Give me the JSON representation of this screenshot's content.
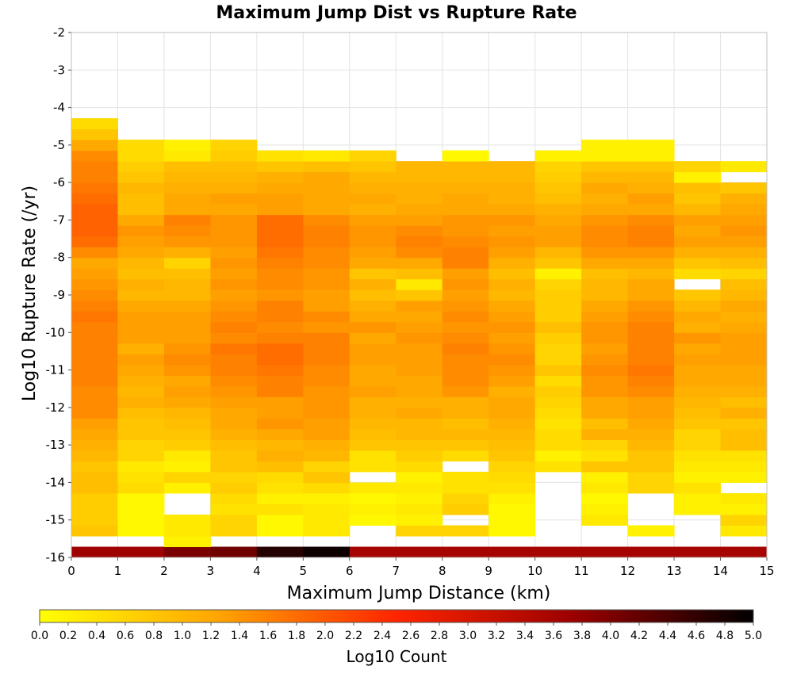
{
  "chart_data": {
    "type": "heatmap",
    "title": "Maximum Jump Dist vs Rupture Rate",
    "xlabel": "Maximum Jump Distance (km)",
    "ylabel": "Log10 Rupture Rate (/yr)",
    "xlim": [
      0,
      15
    ],
    "ylim": [
      -16,
      -2
    ],
    "x_ticks": [
      "0",
      "1",
      "2",
      "3",
      "4",
      "5",
      "6",
      "7",
      "8",
      "9",
      "10",
      "11",
      "12",
      "13",
      "14",
      "15"
    ],
    "y_ticks": [
      "-2",
      "-3",
      "-4",
      "-5",
      "-6",
      "-7",
      "-8",
      "-9",
      "-10",
      "-11",
      "-12",
      "-13",
      "-14",
      "-15",
      "-16"
    ],
    "x_bin_width": 1,
    "y_bin_height": 0.2857,
    "y_bins_start": -16,
    "grid": true,
    "colorbar": {
      "label": "Log10 Count",
      "min": 0.0,
      "max": 5.0,
      "ticks": [
        "0.0",
        "0.2",
        "0.4",
        "0.6",
        "0.8",
        "1.0",
        "1.2",
        "1.4",
        "1.6",
        "1.8",
        "2.0",
        "2.2",
        "2.4",
        "2.6",
        "2.8",
        "3.0",
        "3.2",
        "3.4",
        "3.6",
        "3.8",
        "4.0",
        "4.2",
        "4.4",
        "4.6",
        "4.8",
        "5.0"
      ],
      "colors": [
        "#ffff00",
        "#ffa500",
        "#ff2400",
        "#9a0000",
        "#000000"
      ]
    },
    "z_rows_bottom_to_top": [
      [
        3.7,
        3.7,
        4.0,
        4.1,
        4.7,
        4.9,
        3.6,
        3.6,
        3.6,
        3.6,
        3.6,
        3.6,
        3.6,
        3.6,
        3.6
      ],
      [
        null,
        null,
        0.2,
        null,
        null,
        null,
        null,
        null,
        null,
        null,
        null,
        null,
        null,
        null,
        null
      ],
      [
        0.8,
        0.1,
        0.3,
        0.6,
        0.1,
        0.3,
        null,
        0.6,
        0.6,
        0.1,
        null,
        null,
        0.2,
        null,
        0.3
      ],
      [
        0.7,
        0.1,
        0.3,
        0.6,
        0.1,
        0.3,
        0.1,
        0.2,
        null,
        0.1,
        null,
        0.3,
        null,
        null,
        0.6
      ],
      [
        0.7,
        0.1,
        null,
        0.4,
        0.4,
        0.3,
        0.2,
        0.3,
        0.7,
        0.1,
        null,
        0.2,
        null,
        0.2,
        0.2
      ],
      [
        0.7,
        0.1,
        null,
        0.5,
        0.2,
        0.2,
        0.1,
        0.2,
        0.6,
        0.2,
        null,
        0.1,
        null,
        0.2,
        0.3
      ],
      [
        0.9,
        0.5,
        0.2,
        0.7,
        0.4,
        0.5,
        0.3,
        0.3,
        0.4,
        0.4,
        null,
        0.3,
        0.6,
        0.4,
        null
      ],
      [
        0.9,
        0.4,
        0.6,
        0.6,
        0.5,
        0.8,
        null,
        0.2,
        0.4,
        0.5,
        null,
        0.2,
        0.6,
        0.2,
        0.2
      ],
      [
        0.8,
        0.3,
        0.2,
        0.8,
        0.9,
        0.6,
        0.4,
        0.5,
        null,
        0.6,
        0.4,
        0.8,
        0.8,
        0.3,
        0.3
      ],
      [
        1.0,
        0.6,
        0.3,
        0.8,
        1.1,
        1.0,
        0.4,
        0.7,
        0.5,
        0.8,
        0.2,
        0.4,
        0.8,
        0.4,
        0.4
      ],
      [
        1.1,
        0.6,
        0.7,
        0.9,
        1.0,
        1.1,
        0.8,
        0.8,
        0.8,
        0.9,
        0.5,
        0.6,
        1.0,
        0.6,
        0.9
      ],
      [
        1.2,
        0.8,
        0.8,
        1.1,
        1.2,
        1.3,
        0.9,
        1.0,
        1.0,
        1.0,
        0.5,
        1.1,
        1.1,
        0.6,
        0.9
      ],
      [
        1.3,
        0.8,
        0.9,
        1.2,
        1.4,
        1.3,
        1.0,
        1.0,
        0.9,
        1.1,
        0.4,
        0.9,
        1.2,
        0.8,
        0.8
      ],
      [
        1.5,
        0.9,
        1.0,
        1.2,
        1.3,
        1.4,
        1.1,
        1.2,
        1.1,
        1.2,
        0.5,
        1.2,
        1.3,
        0.9,
        1.1
      ],
      [
        1.5,
        1.1,
        1.2,
        1.3,
        1.3,
        1.4,
        1.1,
        1.1,
        1.1,
        1.2,
        0.6,
        1.2,
        1.3,
        1.0,
        0.9
      ],
      [
        1.5,
        1.0,
        1.3,
        1.4,
        1.6,
        1.4,
        1.3,
        1.2,
        1.4,
        1.1,
        0.7,
        1.4,
        1.5,
        1.1,
        1.1
      ],
      [
        1.6,
        1.1,
        1.2,
        1.5,
        1.6,
        1.5,
        1.2,
        1.2,
        1.5,
        1.3,
        0.5,
        1.4,
        1.6,
        1.2,
        1.2
      ],
      [
        1.6,
        1.2,
        1.4,
        1.6,
        1.7,
        1.5,
        1.2,
        1.3,
        1.5,
        1.4,
        0.8,
        1.5,
        1.7,
        1.2,
        1.2
      ],
      [
        1.6,
        1.3,
        1.5,
        1.6,
        1.8,
        1.6,
        1.3,
        1.3,
        1.5,
        1.5,
        0.6,
        1.4,
        1.6,
        1.3,
        1.3
      ],
      [
        1.6,
        1.1,
        1.4,
        1.7,
        1.8,
        1.6,
        1.3,
        1.3,
        1.6,
        1.4,
        0.6,
        1.3,
        1.6,
        1.2,
        1.3
      ],
      [
        1.6,
        1.3,
        1.3,
        1.5,
        1.6,
        1.6,
        1.2,
        1.4,
        1.5,
        1.3,
        0.7,
        1.4,
        1.6,
        1.4,
        1.3
      ],
      [
        1.6,
        1.3,
        1.3,
        1.6,
        1.5,
        1.4,
        1.4,
        1.3,
        1.4,
        1.4,
        0.9,
        1.4,
        1.6,
        1.1,
        1.2
      ],
      [
        1.7,
        1.3,
        1.3,
        1.5,
        1.6,
        1.5,
        1.2,
        1.2,
        1.5,
        1.3,
        0.7,
        1.3,
        1.5,
        1.2,
        1.1
      ],
      [
        1.6,
        1.2,
        1.2,
        1.4,
        1.6,
        1.3,
        1.1,
        1.3,
        1.4,
        1.2,
        0.7,
        1.2,
        1.4,
        1.0,
        1.2
      ],
      [
        1.5,
        1.0,
        1.0,
        1.3,
        1.4,
        1.3,
        0.9,
        0.8,
        1.3,
        1.0,
        0.7,
        1.0,
        1.2,
        0.8,
        1.0
      ],
      [
        1.4,
        1.1,
        1.0,
        1.4,
        1.5,
        1.4,
        1.1,
        0.3,
        1.4,
        1.1,
        0.6,
        1.0,
        1.2,
        null,
        0.9
      ],
      [
        1.3,
        0.9,
        0.9,
        1.3,
        1.5,
        1.4,
        0.8,
        0.9,
        1.3,
        0.9,
        0.2,
        0.9,
        1.0,
        0.5,
        0.6
      ],
      [
        1.2,
        1.0,
        0.6,
        1.4,
        1.6,
        1.5,
        1.2,
        1.2,
        1.6,
        1.1,
        0.8,
        1.2,
        1.2,
        0.8,
        0.9
      ],
      [
        1.5,
        1.2,
        1.1,
        1.3,
        1.7,
        1.5,
        1.3,
        1.5,
        1.6,
        1.3,
        1.0,
        1.4,
        1.4,
        1.1,
        1.1
      ],
      [
        1.8,
        1.3,
        1.4,
        1.4,
        1.8,
        1.6,
        1.4,
        1.6,
        1.5,
        1.4,
        1.3,
        1.5,
        1.6,
        1.3,
        1.3
      ],
      [
        1.9,
        1.4,
        1.5,
        1.4,
        1.8,
        1.6,
        1.4,
        1.5,
        1.4,
        1.3,
        1.3,
        1.5,
        1.6,
        1.2,
        1.4
      ],
      [
        1.9,
        1.2,
        1.6,
        1.4,
        1.8,
        1.5,
        1.3,
        1.3,
        1.4,
        1.4,
        1.2,
        1.4,
        1.5,
        1.3,
        1.3
      ],
      [
        1.9,
        0.9,
        1.2,
        1.2,
        1.3,
        1.2,
        1.1,
        1.2,
        1.2,
        1.2,
        1.1,
        1.2,
        1.2,
        1.0,
        1.2
      ],
      [
        1.8,
        0.9,
        1.2,
        1.3,
        1.3,
        1.2,
        1.2,
        1.1,
        1.2,
        1.1,
        0.9,
        1.1,
        1.3,
        0.8,
        1.1
      ],
      [
        1.7,
        1.0,
        1.1,
        1.1,
        1.2,
        1.2,
        1.1,
        1.1,
        1.1,
        1.1,
        0.8,
        1.2,
        1.1,
        0.9,
        0.8
      ],
      [
        1.6,
        0.8,
        1.0,
        1.0,
        1.1,
        1.2,
        1.0,
        1.0,
        1.0,
        1.0,
        0.7,
        1.0,
        1.0,
        0.2,
        null
      ],
      [
        1.6,
        0.7,
        0.9,
        0.9,
        0.8,
        0.9,
        0.8,
        1.0,
        1.0,
        1.0,
        0.6,
        0.8,
        0.8,
        0.6,
        0.3
      ],
      [
        1.5,
        0.5,
        0.3,
        0.7,
        0.4,
        0.3,
        0.6,
        null,
        0.1,
        null,
        0.2,
        0.2,
        0.2,
        null,
        null
      ],
      [
        1.2,
        0.5,
        0.2,
        0.6,
        null,
        null,
        null,
        null,
        null,
        null,
        null,
        0.2,
        0.2,
        null,
        null
      ],
      [
        0.8,
        null,
        null,
        null,
        null,
        null,
        null,
        null,
        null,
        null,
        null,
        null,
        null,
        null,
        null
      ],
      [
        0.5,
        null,
        null,
        null,
        null,
        null,
        null,
        null,
        null,
        null,
        null,
        null,
        null,
        null,
        null
      ]
    ]
  }
}
